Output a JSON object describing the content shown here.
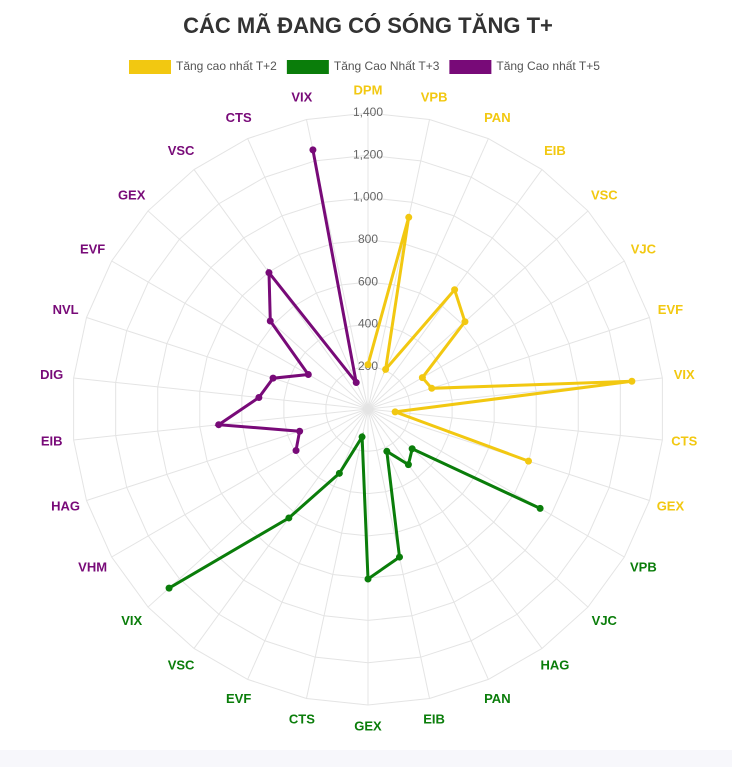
{
  "chart_data": {
    "type": "radar",
    "title": "CÁC MÃ ĐANG CÓ SÓNG TĂNG T+",
    "categories": [
      "DPM",
      "VPB",
      "PAN",
      "EIB",
      "VSC",
      "VJC",
      "EVF",
      "VIX",
      "CTS",
      "GEX",
      "VPB",
      "VJC",
      "HAG",
      "PAN",
      "EIB",
      "GEX",
      "CTS",
      "EVF",
      "VSC",
      "VIX",
      "VHM",
      "HAG",
      "EIB",
      "DIG",
      "NVL",
      "EVF",
      "GEX",
      "VSC",
      "CTS",
      "VIX"
    ],
    "series": [
      {
        "name": "Tăng cao nhất T+2",
        "color": "#f2c811",
        "values": [
          210,
          927,
          205,
          697,
          617,
          297,
          317,
          1255,
          129,
          798,
          null,
          null,
          null,
          null,
          null,
          null,
          null,
          null,
          null,
          null,
          null,
          null,
          null,
          null,
          null,
          null,
          null,
          null,
          null,
          null
        ]
      },
      {
        "name": "Tăng Cao Nhất T+3",
        "color": "#0a7d0a",
        "values": [
          null,
          null,
          null,
          null,
          null,
          null,
          null,
          null,
          null,
          null,
          940,
          281,
          325,
          219,
          716,
          804,
          135,
          333,
          637,
          1266,
          null,
          null,
          null,
          null,
          null,
          null,
          null,
          null,
          null,
          null
        ]
      },
      {
        "name": "Tăng Cao nhất T+5",
        "color": "#780a78",
        "values": [
          null,
          null,
          null,
          null,
          null,
          null,
          null,
          null,
          null,
          null,
          null,
          null,
          null,
          null,
          null,
          null,
          null,
          null,
          null,
          null,
          393,
          340,
          710,
          519,
          472,
          326,
          622,
          797,
          137,
          1253
        ]
      }
    ],
    "ylim": [
      0,
      1400
    ],
    "yticks": [
      200,
      400,
      600,
      800,
      {
        "value": 1000,
        "label": "1,000"
      },
      {
        "value": 1200,
        "label": "1,200"
      },
      {
        "value": 1400,
        "label": "1,400"
      }
    ],
    "grid": true,
    "legend": "top"
  }
}
